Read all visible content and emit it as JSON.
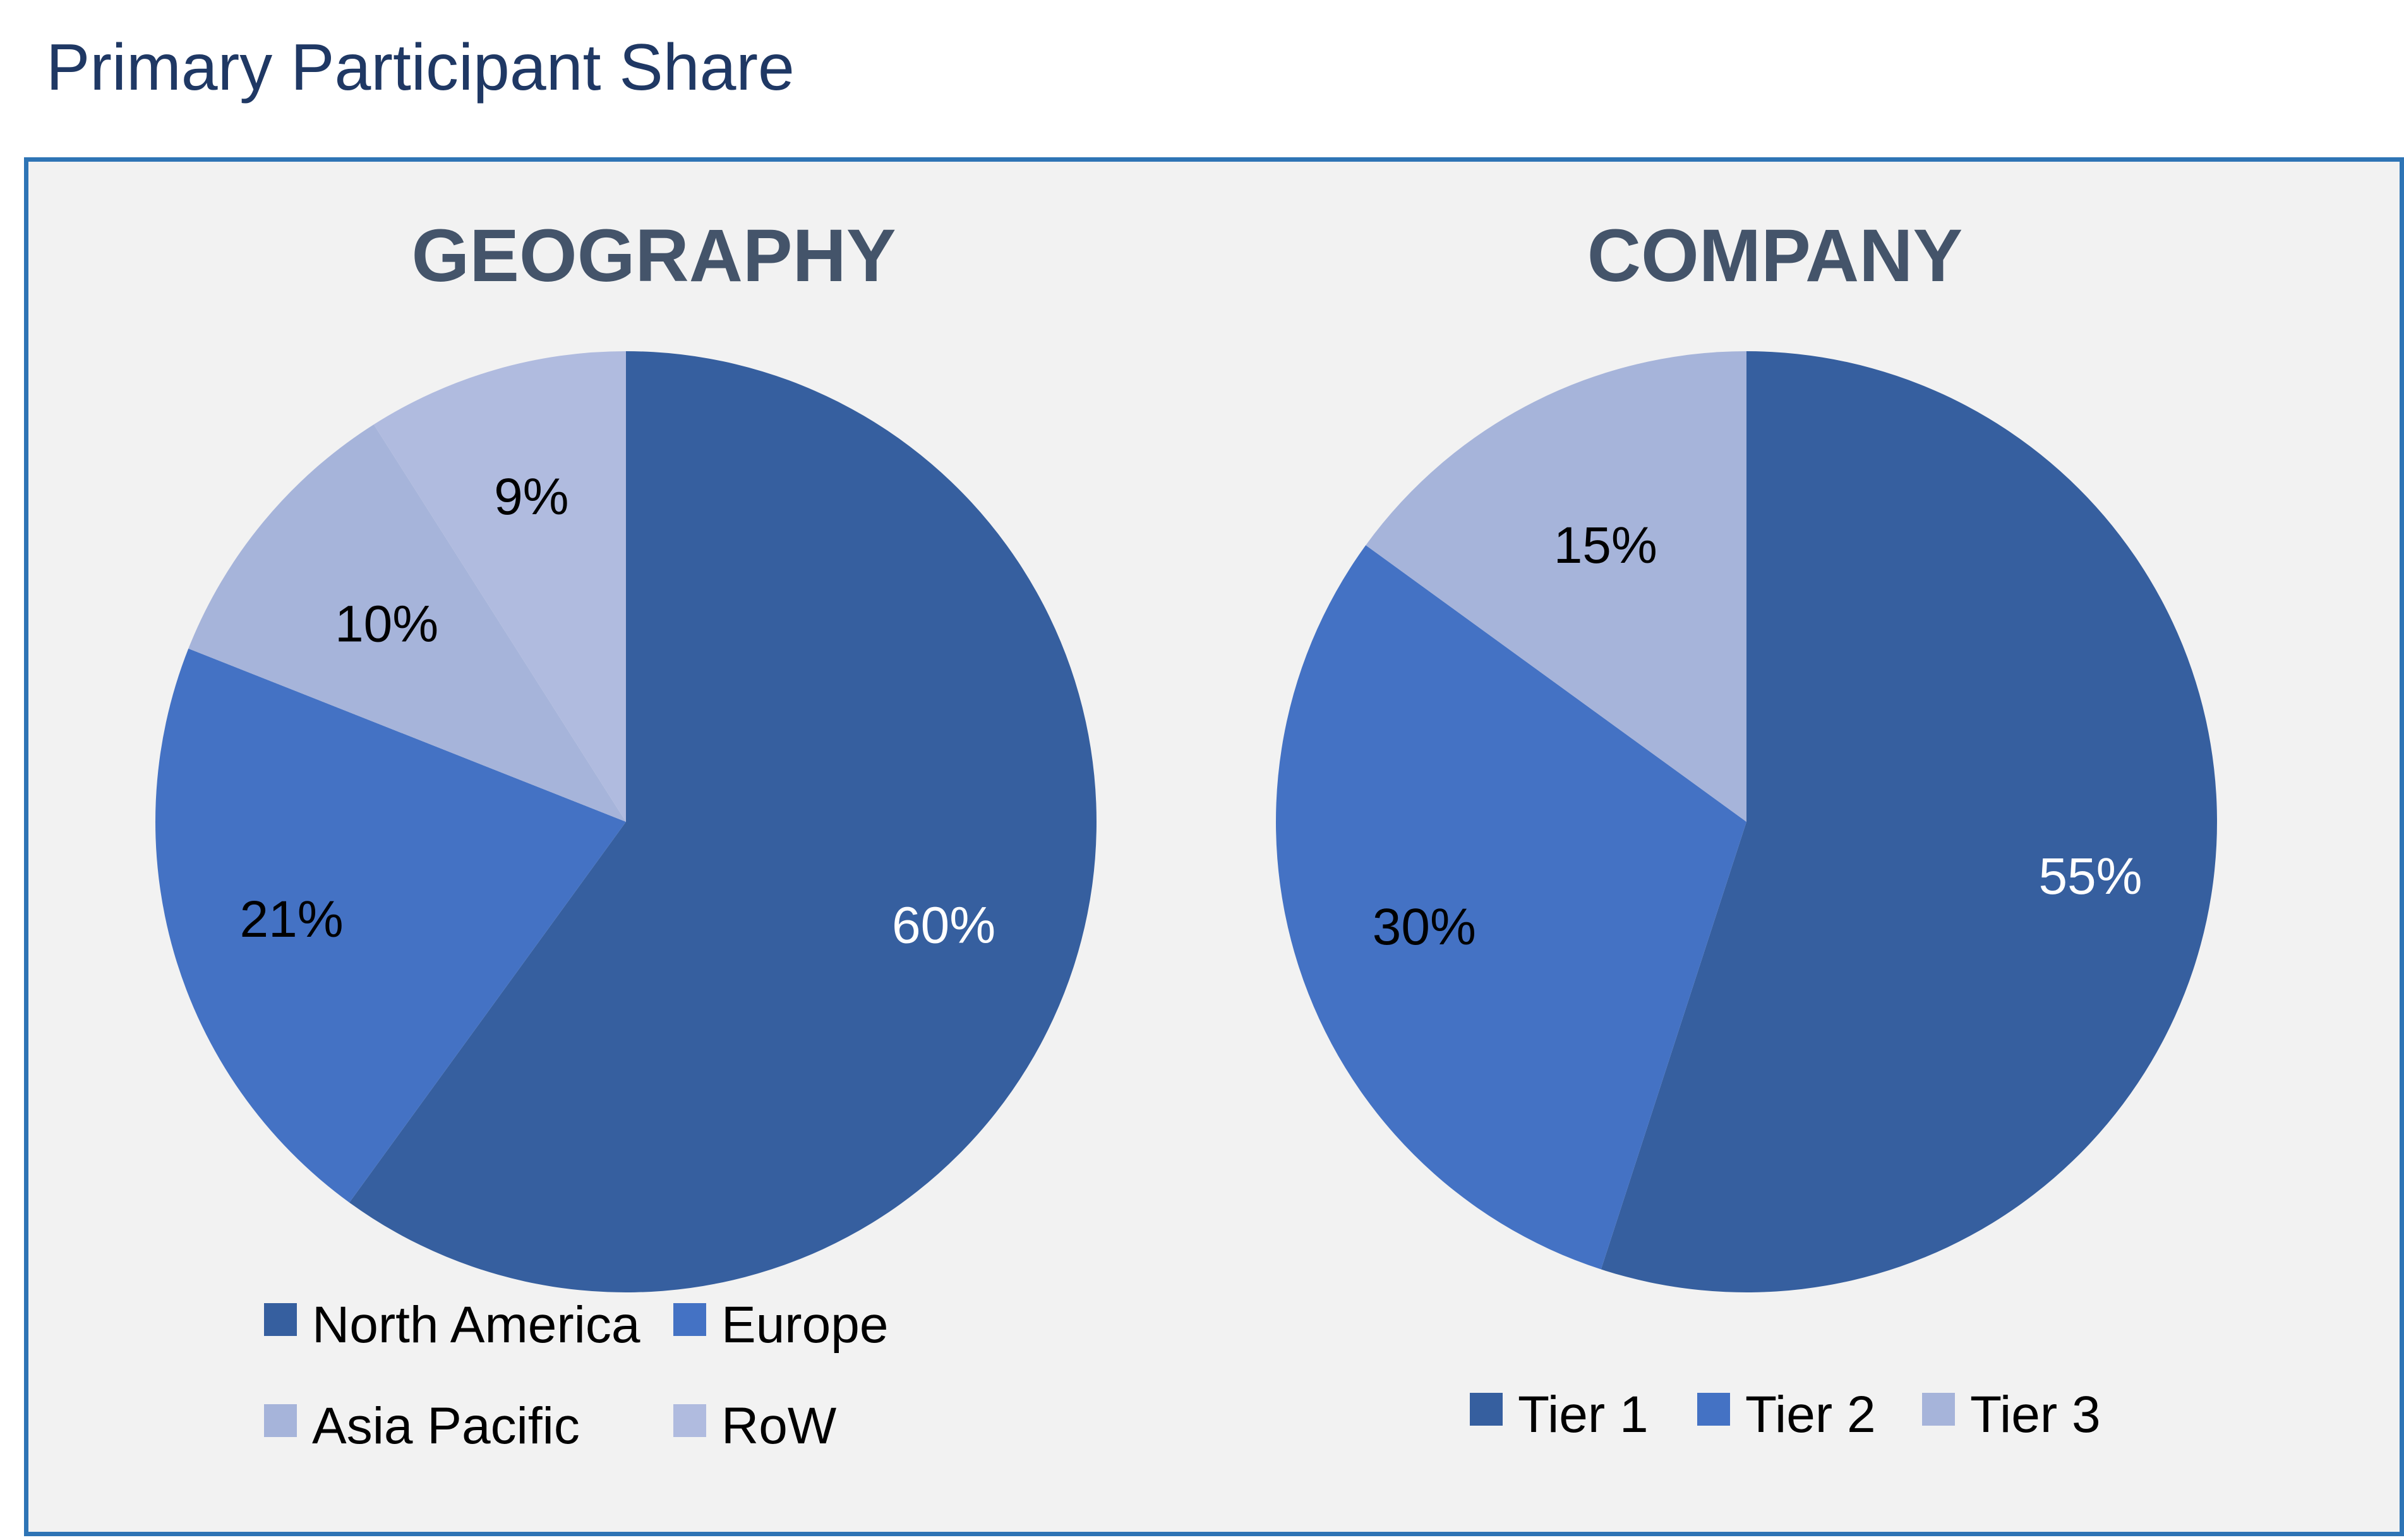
{
  "page_title": "Primary Participant Share",
  "colors": {
    "title_text": "#1f3864",
    "panel_border": "#2e74b5",
    "panel_background": "#f2f2f2",
    "chart_title_text": "#44546a"
  },
  "chart_data": [
    {
      "type": "pie",
      "title": "GEOGRAPHY",
      "start": "12 o'clock",
      "direction": "clockwise",
      "legend_position": "bottom",
      "slices": [
        {
          "label": "North America",
          "value": 60,
          "display": "60%",
          "color": "#365f9f",
          "label_color": "#ffffff"
        },
        {
          "label": "Europe",
          "value": 21,
          "display": "21%",
          "color": "#4472c4",
          "label_color": "#000000"
        },
        {
          "label": "Asia Pacific",
          "value": 10,
          "display": "10%",
          "color": "#a6b4da",
          "label_color": "#000000"
        },
        {
          "label": "RoW",
          "value": 9,
          "display": "9%",
          "color": "#b0bbdf",
          "label_color": "#000000"
        }
      ]
    },
    {
      "type": "pie",
      "title": "COMPANY",
      "start": "12 o'clock",
      "direction": "clockwise",
      "legend_position": "bottom",
      "slices": [
        {
          "label": "Tier 1",
          "value": 55,
          "display": "55%",
          "color": "#365f9f",
          "label_color": "#ffffff"
        },
        {
          "label": "Tier 2",
          "value": 30,
          "display": "30%",
          "color": "#4472c4",
          "label_color": "#000000"
        },
        {
          "label": "Tier 3",
          "value": 15,
          "display": "15%",
          "color": "#a6b4da",
          "label_color": "#000000"
        }
      ]
    }
  ]
}
